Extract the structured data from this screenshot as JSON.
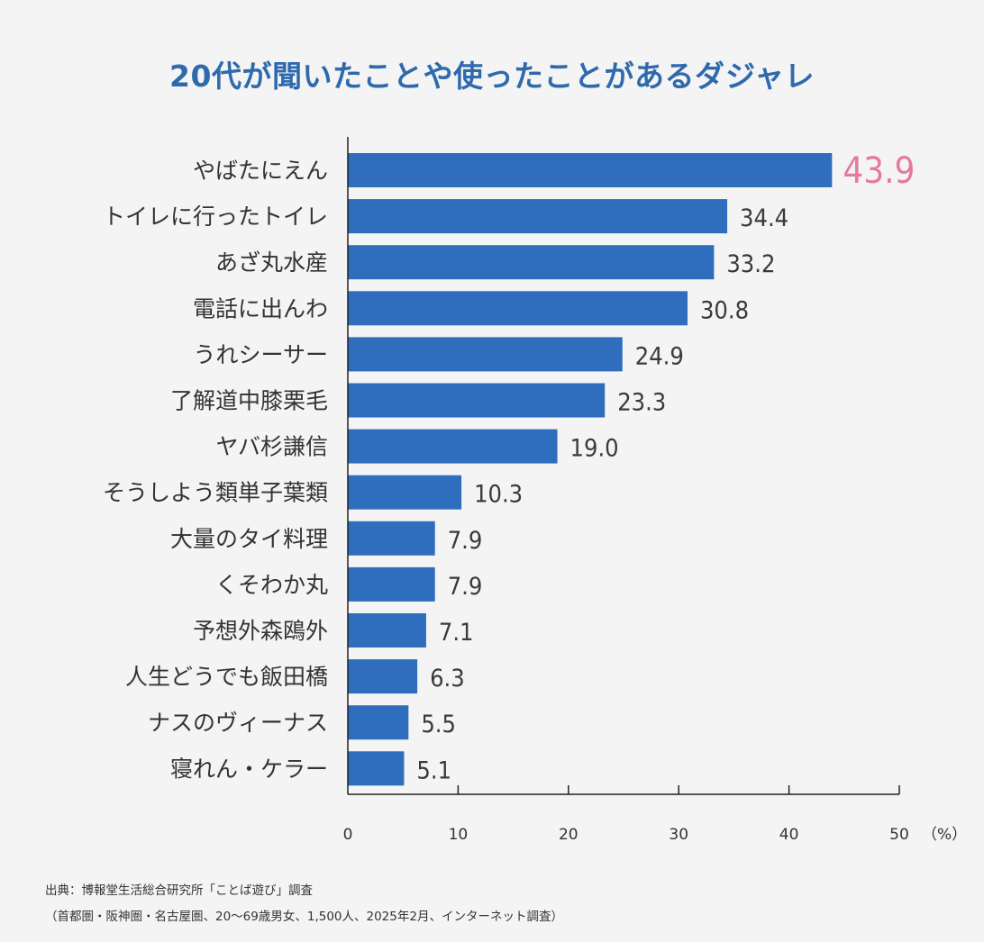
{
  "chart_data": {
    "type": "bar",
    "orientation": "horizontal",
    "title": "20代が聞いたことや使ったことがあるダジャレ",
    "categories": [
      "やばたにえん",
      "トイレに行ったトイレ",
      "あざ丸水産",
      "電話に出んわ",
      "うれシーサー",
      "了解道中膝栗毛",
      "ヤバ杉謙信",
      "そうしよう類単子葉類",
      "大量のタイ料理",
      "くそわか丸",
      "予想外森鴎外",
      "人生どうでも飯田橋",
      "ナスのヴィーナス",
      "寝れん・ケラー"
    ],
    "values": [
      43.9,
      34.4,
      33.2,
      30.8,
      24.9,
      23.3,
      19.0,
      10.3,
      7.9,
      7.9,
      7.1,
      6.3,
      5.5,
      5.1
    ],
    "value_labels": [
      "43.9",
      "34.4",
      "33.2",
      "30.8",
      "24.9",
      "23.3",
      "19.0",
      "10.3",
      "7.9",
      "7.9",
      "7.1",
      "6.3",
      "5.5",
      "5.1"
    ],
    "highlight_index": 0,
    "xlabel": "",
    "ylabel": "",
    "x_unit": "（%）",
    "xlim": [
      0,
      50
    ],
    "xticks": [
      0,
      10,
      20,
      30,
      40,
      50
    ],
    "xtick_labels": [
      "0",
      "10",
      "20",
      "30",
      "40",
      "50"
    ],
    "grid": false,
    "bar_color": "#2f6ebd",
    "highlight_label_color": "#e37aa0",
    "title_color": "#2f6aad"
  },
  "source": {
    "line1": "出典：博報堂生活総合研究所「ことば遊び」調査",
    "line2": "（首都圏・阪神圏・名古屋圏、20〜69歳男女、1,500人、2025年2月、インターネット調査）"
  }
}
